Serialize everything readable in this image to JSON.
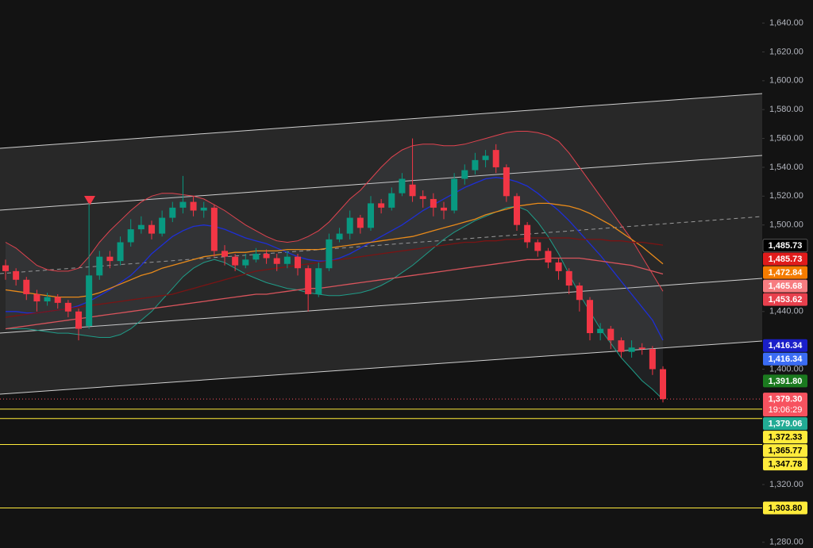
{
  "chart_data": {
    "type": "candlestick",
    "ylim": [
      1276,
      1656
    ],
    "yticks": [
      {
        "value": 1640,
        "label": "1,640.00"
      },
      {
        "value": 1620,
        "label": "1,620.00"
      },
      {
        "value": 1600,
        "label": "1,600.00"
      },
      {
        "value": 1580,
        "label": "1,580.00"
      },
      {
        "value": 1560,
        "label": "1,560.00"
      },
      {
        "value": 1540,
        "label": "1,540.00"
      },
      {
        "value": 1520,
        "label": "1,520.00"
      },
      {
        "value": 1500,
        "label": "1,500.00"
      },
      {
        "value": 1440,
        "label": "1,440.00"
      },
      {
        "value": 1400,
        "label": "1,400.00"
      },
      {
        "value": 1320,
        "label": "1,320.00"
      },
      {
        "value": 1280,
        "label": "1,280.00"
      }
    ],
    "up_color": "#089981",
    "down_color": "#f23645",
    "open": [
      1472,
      1468,
      1462,
      1452,
      1447,
      1450,
      1446,
      1440,
      1430,
      1465,
      1478,
      1475,
      1488,
      1497,
      1500,
      1494,
      1505,
      1512,
      1516,
      1510,
      1512,
      1482,
      1478,
      1472,
      1476,
      1480,
      1477,
      1473,
      1478,
      1470,
      1452,
      1470,
      1490,
      1494,
      1505,
      1498,
      1515,
      1512,
      1522,
      1528,
      1520,
      1518,
      1512,
      1510,
      1532,
      1538,
      1545,
      1552,
      1540,
      1520,
      1500,
      1488,
      1482,
      1474,
      1468,
      1458,
      1448,
      1425,
      1428,
      1420,
      1412,
      1415,
      1414,
      1400
    ],
    "high": [
      1476,
      1470,
      1464,
      1455,
      1453,
      1452,
      1448,
      1442,
      1515,
      1482,
      1482,
      1492,
      1504,
      1506,
      1503,
      1510,
      1516,
      1534,
      1520,
      1516,
      1514,
      1486,
      1480,
      1480,
      1484,
      1483,
      1480,
      1482,
      1480,
      1472,
      1474,
      1494,
      1498,
      1510,
      1507,
      1520,
      1518,
      1526,
      1536,
      1560,
      1524,
      1522,
      1516,
      1536,
      1542,
      1550,
      1552,
      1556,
      1542,
      1522,
      1502,
      1490,
      1484,
      1477,
      1470,
      1460,
      1450,
      1432,
      1430,
      1422,
      1420,
      1418,
      1416,
      1402
    ],
    "low": [
      1462,
      1458,
      1448,
      1440,
      1444,
      1442,
      1436,
      1420,
      1428,
      1462,
      1470,
      1472,
      1485,
      1494,
      1490,
      1492,
      1502,
      1508,
      1506,
      1505,
      1478,
      1472,
      1468,
      1470,
      1474,
      1473,
      1468,
      1470,
      1465,
      1440,
      1450,
      1468,
      1488,
      1490,
      1494,
      1496,
      1508,
      1510,
      1520,
      1516,
      1512,
      1506,
      1504,
      1508,
      1528,
      1535,
      1540,
      1536,
      1516,
      1496,
      1484,
      1478,
      1470,
      1462,
      1452,
      1440,
      1420,
      1420,
      1414,
      1408,
      1408,
      1410,
      1396,
      1377
    ],
    "close": [
      1468,
      1462,
      1452,
      1447,
      1450,
      1446,
      1440,
      1428,
      1465,
      1478,
      1475,
      1488,
      1497,
      1500,
      1494,
      1505,
      1512,
      1516,
      1510,
      1512,
      1482,
      1478,
      1472,
      1476,
      1480,
      1477,
      1473,
      1478,
      1470,
      1452,
      1470,
      1490,
      1494,
      1505,
      1498,
      1515,
      1512,
      1522,
      1532,
      1520,
      1518,
      1512,
      1510,
      1532,
      1538,
      1545,
      1548,
      1540,
      1520,
      1500,
      1488,
      1482,
      1474,
      1468,
      1458,
      1448,
      1425,
      1428,
      1420,
      1412,
      1415,
      1414,
      1400,
      1379.3
    ],
    "bollinger": {
      "fill": "rgba(120,130,150,0.13)",
      "upper": {
        "color": "#e0434f",
        "values": [
          1488,
          1484,
          1478,
          1472,
          1469,
          1468,
          1468,
          1470,
          1478,
          1488,
          1496,
          1503,
          1510,
          1516,
          1520,
          1522,
          1522,
          1521,
          1520,
          1518,
          1514,
          1510,
          1505,
          1500,
          1496,
          1492,
          1489,
          1488,
          1489,
          1492,
          1496,
          1502,
          1510,
          1518,
          1524,
          1532,
          1540,
          1547,
          1552,
          1555,
          1556,
          1556,
          1555,
          1555,
          1556,
          1558,
          1560,
          1562,
          1564,
          1565,
          1565,
          1564,
          1562,
          1558,
          1550,
          1540,
          1530,
          1520,
          1510,
          1500,
          1490,
          1478,
          1466,
          1454
        ]
      },
      "lower": {
        "color": "#1f9c88",
        "values": [
          1428,
          1428,
          1428,
          1427,
          1426,
          1425,
          1425,
          1424,
          1423,
          1422,
          1422,
          1424,
          1428,
          1434,
          1440,
          1448,
          1456,
          1464,
          1470,
          1474,
          1476,
          1474,
          1470,
          1466,
          1463,
          1460,
          1458,
          1456,
          1455,
          1453,
          1452,
          1451,
          1451,
          1452,
          1453,
          1455,
          1458,
          1462,
          1467,
          1472,
          1478,
          1484,
          1490,
          1495,
          1499,
          1503,
          1506,
          1509,
          1512,
          1513,
          1510,
          1502,
          1492,
          1480,
          1466,
          1452,
          1440,
          1428,
          1418,
          1408,
          1400,
          1392,
          1386,
          1379.06
        ]
      }
    },
    "moving_averages": [
      {
        "color": "#1e2fd6",
        "values": [
          1440,
          1440,
          1439,
          1439,
          1440,
          1441,
          1442,
          1444,
          1447,
          1451,
          1455,
          1460,
          1465,
          1472,
          1480,
          1486,
          1492,
          1496,
          1499,
          1500,
          1499,
          1497,
          1494,
          1491,
          1489,
          1487,
          1484,
          1481,
          1478,
          1476,
          1475,
          1475,
          1477,
          1480,
          1484,
          1488,
          1492,
          1496,
          1500,
          1505,
          1510,
          1514,
          1518,
          1522,
          1526,
          1529,
          1532,
          1533,
          1532,
          1530,
          1527,
          1522,
          1516,
          1510,
          1503,
          1495,
          1487,
          1479,
          1470,
          1461,
          1452,
          1443,
          1434,
          1420
        ]
      },
      {
        "color": "#e88a1a",
        "values": [
          1455,
          1454,
          1453,
          1452,
          1451,
          1450,
          1450,
          1450,
          1451,
          1453,
          1456,
          1459,
          1462,
          1465,
          1467,
          1470,
          1472,
          1474,
          1476,
          1478,
          1479,
          1480,
          1481,
          1481,
          1482,
          1482,
          1482,
          1483,
          1483,
          1483,
          1483,
          1484,
          1485,
          1486,
          1487,
          1488,
          1489,
          1490,
          1491,
          1492,
          1494,
          1496,
          1498,
          1500,
          1502,
          1504,
          1507,
          1509,
          1511,
          1513,
          1514,
          1515,
          1515,
          1514,
          1513,
          1511,
          1508,
          1504,
          1500,
          1495,
          1490,
          1485,
          1479,
          1473
        ]
      },
      {
        "color": "#7a1414",
        "values": [
          1436,
          1437,
          1438,
          1439,
          1440,
          1441,
          1442,
          1443,
          1444,
          1445,
          1446,
          1447,
          1448,
          1449,
          1450,
          1451,
          1452,
          1454,
          1456,
          1458,
          1460,
          1462,
          1464,
          1466,
          1468,
          1469,
          1470,
          1471,
          1472,
          1473,
          1474,
          1475,
          1476,
          1477,
          1478,
          1479,
          1480,
          1481,
          1482,
          1483,
          1484,
          1485,
          1486,
          1487,
          1488,
          1488,
          1489,
          1489,
          1490,
          1490,
          1491,
          1491,
          1491,
          1491,
          1491,
          1490,
          1490,
          1490,
          1489,
          1489,
          1488,
          1488,
          1487,
          1486
        ]
      },
      {
        "color": "#d9545c",
        "values": [
          1428,
          1429,
          1430,
          1431,
          1432,
          1433,
          1434,
          1435,
          1436,
          1437,
          1438,
          1439,
          1440,
          1441,
          1442,
          1443,
          1444,
          1445,
          1446,
          1447,
          1448,
          1449,
          1450,
          1451,
          1452,
          1452,
          1453,
          1454,
          1455,
          1456,
          1456,
          1457,
          1458,
          1459,
          1460,
          1461,
          1462,
          1463,
          1464,
          1465,
          1466,
          1467,
          1468,
          1469,
          1470,
          1471,
          1472,
          1473,
          1474,
          1475,
          1476,
          1476,
          1477,
          1477,
          1477,
          1477,
          1476,
          1475,
          1474,
          1473,
          1472,
          1470,
          1468,
          1466
        ]
      }
    ],
    "price_labels": [
      {
        "value": 1485.73,
        "label": "1,485.73",
        "color": "#000000",
        "text_color": "#ffffff"
      },
      {
        "value": 1485.73,
        "label": "1,485.73",
        "color": "#e01b1b",
        "text_color": "#ffffff"
      },
      {
        "value": 1472.84,
        "label": "1,472.84",
        "color": "#f57c00",
        "text_color": "#ffffff"
      },
      {
        "value": 1465.68,
        "label": "1,465.68",
        "color": "#f77c80",
        "text_color": "#ffffff"
      },
      {
        "value": 1453.62,
        "label": "1,453.62",
        "color": "#e8404d",
        "text_color": "#ffffff"
      },
      {
        "value": 1416.34,
        "label": "1,416.34",
        "color": "#1a1fc9",
        "text_color": "#ffffff"
      },
      {
        "value": 1416.34,
        "label": "1,416.34",
        "color": "#3b6cf5",
        "text_color": "#ffffff"
      },
      {
        "value": 1391.8,
        "label": "1,391.80",
        "color": "#1b7a1f",
        "text_color": "#ffffff"
      },
      {
        "value": 1379.3,
        "label": "1,379.30",
        "sublabel": "19:06:29",
        "color": "#f7525f",
        "text_color": "#ffffff",
        "line": "dotted"
      },
      {
        "value": 1379.06,
        "label": "1,379.06",
        "color": "#22ab94",
        "text_color": "#ffffff"
      },
      {
        "value": 1372.33,
        "label": "1,372.33",
        "color": "#ffeb3b",
        "text_color": "#000000",
        "line": "solid"
      },
      {
        "value": 1365.77,
        "label": "1,365.77",
        "color": "#ffeb3b",
        "text_color": "#000000",
        "line": "solid"
      },
      {
        "value": 1347.78,
        "label": "1,347.78",
        "color": "#ffeb3b",
        "text_color": "#000000",
        "line": "solid"
      },
      {
        "value": 1303.8,
        "label": "1,303.80",
        "color": "#ffeb3b",
        "text_color": "#000000",
        "line": "solid"
      }
    ]
  }
}
